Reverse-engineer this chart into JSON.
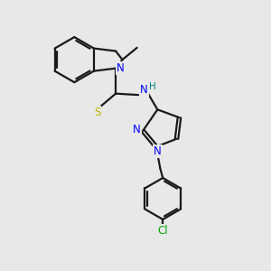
{
  "bg_color": "#e8e8e8",
  "bond_color": "#1a1a1a",
  "N_color": "#0000ff",
  "S_color": "#b8b800",
  "Cl_color": "#00aa00",
  "H_color": "#008080",
  "line_width": 1.6,
  "figsize": [
    3.0,
    3.0
  ],
  "dpi": 100,
  "xlim": [
    0,
    10
  ],
  "ylim": [
    0,
    10
  ]
}
